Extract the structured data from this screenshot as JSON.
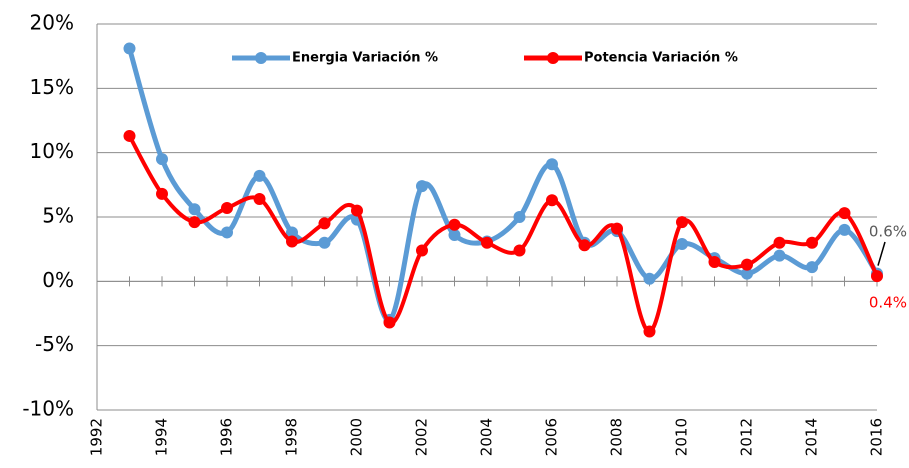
{
  "chart_data": {
    "type": "line",
    "x": [
      1993,
      1994,
      1995,
      1996,
      1997,
      1998,
      1999,
      2000,
      2001,
      2002,
      2003,
      2004,
      2005,
      2006,
      2007,
      2008,
      2009,
      2010,
      2011,
      2012,
      2013,
      2014,
      2015,
      2016
    ],
    "series": [
      {
        "name": "Energia Variación %",
        "color": "#5b9bd5",
        "values": [
          18.1,
          9.5,
          5.6,
          3.8,
          8.2,
          3.8,
          3.0,
          4.8,
          -3.0,
          7.4,
          3.6,
          3.1,
          5.0,
          9.1,
          3.0,
          3.9,
          0.2,
          2.9,
          1.8,
          0.6,
          2.0,
          1.1,
          4.0,
          0.6
        ],
        "value_labels": [
          null,
          null,
          null,
          null,
          null,
          null,
          null,
          null,
          null,
          null,
          null,
          null,
          null,
          null,
          null,
          null,
          null,
          null,
          null,
          null,
          null,
          null,
          null,
          "0.6%"
        ]
      },
      {
        "name": "Potencia Variación %",
        "color": "#ff0000",
        "values": [
          11.3,
          6.8,
          4.6,
          5.7,
          6.4,
          3.1,
          4.5,
          5.5,
          -3.2,
          2.4,
          4.4,
          3.0,
          2.4,
          6.3,
          2.8,
          4.1,
          -3.9,
          4.6,
          1.5,
          1.3,
          3.0,
          3.0,
          5.3,
          0.4
        ],
        "value_labels": [
          null,
          null,
          null,
          null,
          null,
          null,
          null,
          null,
          null,
          null,
          null,
          null,
          null,
          null,
          null,
          null,
          null,
          null,
          null,
          null,
          null,
          null,
          null,
          "0.4%"
        ]
      }
    ],
    "xlim": [
      1992,
      2016
    ],
    "xticks": [
      1992,
      1994,
      1996,
      1998,
      2000,
      2002,
      2004,
      2006,
      2008,
      2010,
      2012,
      2014,
      2016
    ],
    "ylim": [
      -10,
      20
    ],
    "yticks": [
      {
        "value": -10,
        "label": "-10%"
      },
      {
        "value": -5,
        "label": "-5%"
      },
      {
        "value": 0,
        "label": "0%"
      },
      {
        "value": 5,
        "label": "5%"
      },
      {
        "value": 10,
        "label": "10%"
      },
      {
        "value": 15,
        "label": "15%"
      },
      {
        "value": 20,
        "label": "20%"
      }
    ],
    "grid": true,
    "legend": "top"
  }
}
